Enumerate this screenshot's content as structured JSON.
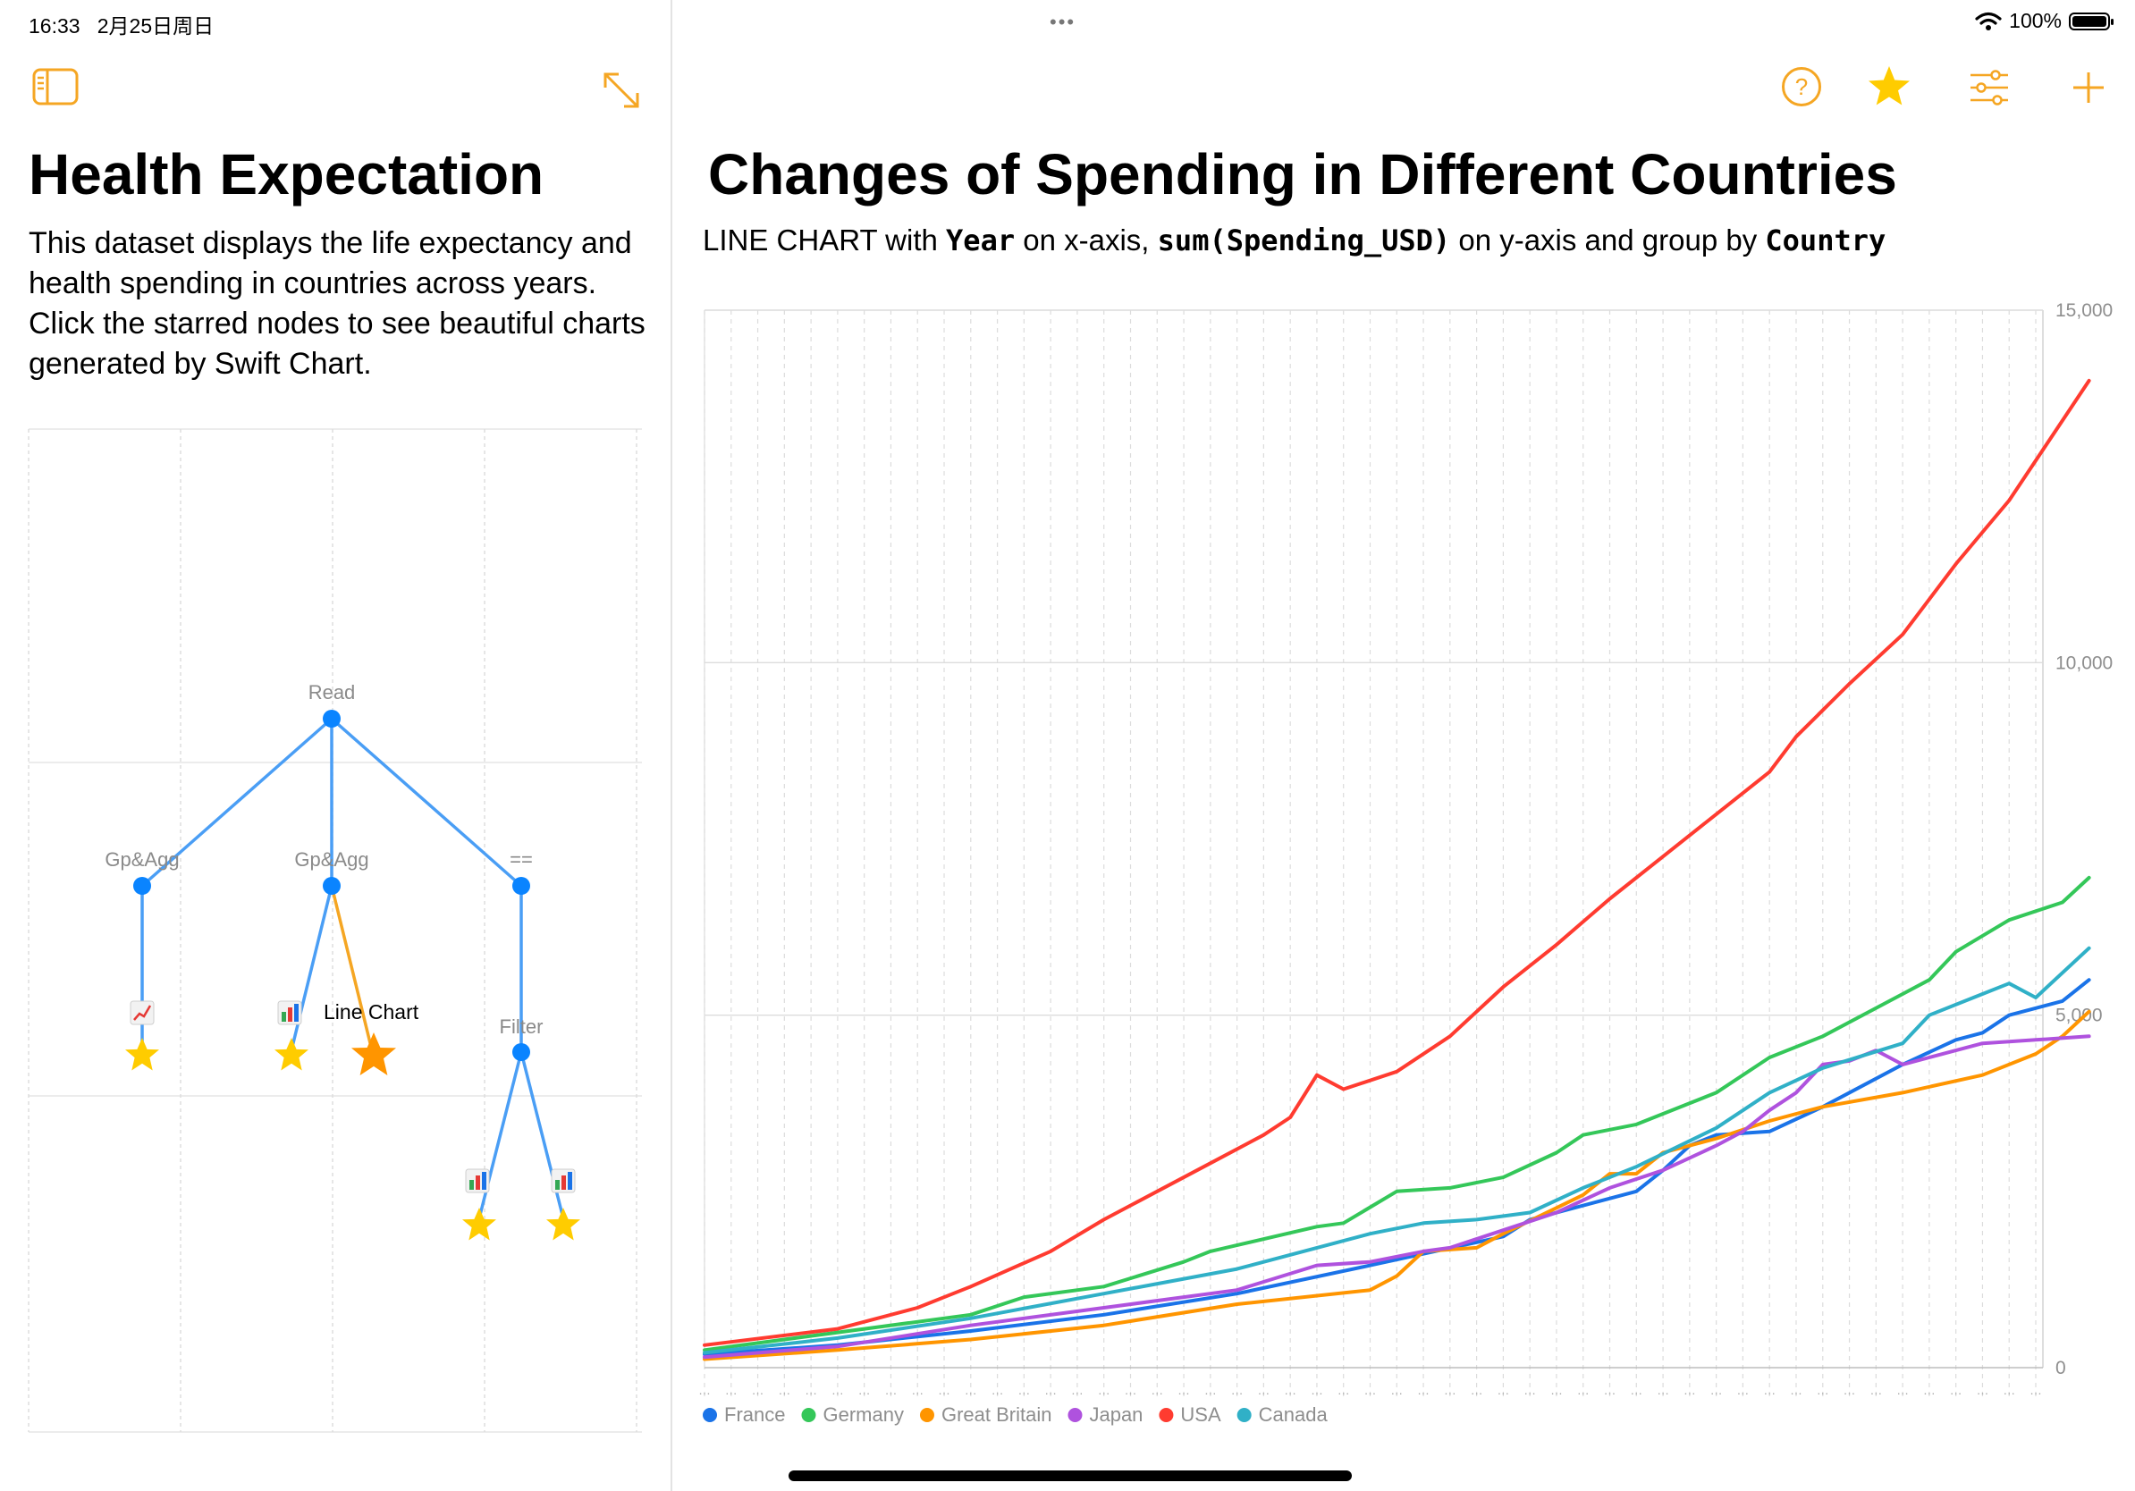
{
  "status_bar": {
    "time": "16:33",
    "date": "2月25日周日",
    "battery": "100%",
    "dots": "•••"
  },
  "toolbar": {
    "left": [
      "sidebar-toggle-icon",
      "expand-icon"
    ],
    "right": [
      "help-icon",
      "star-icon",
      "sliders-icon",
      "plus-icon"
    ],
    "accent_color": "#F5A623",
    "star_color": "#FFCC00"
  },
  "left_panel": {
    "title": "Health Expectation",
    "description": "This dataset displays the life expectancy and health spending in countries across years. Click the starred nodes to see beautiful charts generated by Swift Chart.",
    "graph": {
      "nodes": {
        "read": "Read",
        "gpagg1": "Gp&Agg",
        "gpagg2": "Gp&Agg",
        "eq": "==",
        "filter": "Filter",
        "line_chart": "Line Chart"
      },
      "node_color": "#0A84FF",
      "edge_color": "#4A9EF5",
      "active_edge_color": "#F5A623"
    }
  },
  "right_panel": {
    "title": "Changes of Spending in Different Countries",
    "subtitle": {
      "p1": "LINE CHART with ",
      "x": "Year",
      "p2": " on x-axis, ",
      "y": "sum(Spending_USD)",
      "p3": " on y-axis and group by ",
      "group": "Country"
    }
  },
  "chart_data": {
    "type": "line",
    "title": "Changes of Spending in Different Countries",
    "xlabel": "Year",
    "ylabel": "sum(Spending_USD)",
    "ylim": [
      0,
      15000
    ],
    "yticks": [
      "0",
      "5,000",
      "10,000",
      "15,000"
    ],
    "x_range": [
      1970,
      2020
    ],
    "legend_position": "bottom-left",
    "series": [
      {
        "name": "France",
        "color": "#1A73E8",
        "points": [
          [
            1970,
            190
          ],
          [
            1975,
            320
          ],
          [
            1980,
            520
          ],
          [
            1985,
            750
          ],
          [
            1990,
            1050
          ],
          [
            1995,
            1450
          ],
          [
            2000,
            1860
          ],
          [
            2001,
            2100
          ],
          [
            2005,
            2500
          ],
          [
            2006,
            2800
          ],
          [
            2007,
            3150
          ],
          [
            2008,
            3300
          ],
          [
            2010,
            3350
          ],
          [
            2012,
            3700
          ],
          [
            2015,
            4300
          ],
          [
            2017,
            4650
          ],
          [
            2018,
            4750
          ],
          [
            2019,
            5000
          ],
          [
            2021,
            5200
          ],
          [
            2022,
            5500
          ]
        ]
      },
      {
        "name": "Germany",
        "color": "#34C759",
        "points": [
          [
            1970,
            250
          ],
          [
            1975,
            500
          ],
          [
            1980,
            750
          ],
          [
            1982,
            1000
          ],
          [
            1985,
            1150
          ],
          [
            1988,
            1500
          ],
          [
            1989,
            1650
          ],
          [
            1993,
            2000
          ],
          [
            1994,
            2050
          ],
          [
            1996,
            2500
          ],
          [
            1998,
            2550
          ],
          [
            2000,
            2700
          ],
          [
            2002,
            3050
          ],
          [
            2003,
            3300
          ],
          [
            2005,
            3450
          ],
          [
            2008,
            3900
          ],
          [
            2010,
            4400
          ],
          [
            2012,
            4700
          ],
          [
            2015,
            5300
          ],
          [
            2016,
            5500
          ],
          [
            2017,
            5900
          ],
          [
            2019,
            6350
          ],
          [
            2021,
            6600
          ],
          [
            2022,
            6950
          ]
        ]
      },
      {
        "name": "Great Britain",
        "color": "#FF9500",
        "points": [
          [
            1970,
            120
          ],
          [
            1975,
            250
          ],
          [
            1980,
            400
          ],
          [
            1985,
            600
          ],
          [
            1990,
            900
          ],
          [
            1995,
            1100
          ],
          [
            1996,
            1300
          ],
          [
            1997,
            1650
          ],
          [
            1999,
            1700
          ],
          [
            2000,
            1900
          ],
          [
            2003,
            2450
          ],
          [
            2004,
            2750
          ],
          [
            2005,
            2750
          ],
          [
            2006,
            3050
          ],
          [
            2008,
            3250
          ],
          [
            2010,
            3500
          ],
          [
            2012,
            3700
          ],
          [
            2015,
            3900
          ],
          [
            2018,
            4150
          ],
          [
            2020,
            4450
          ],
          [
            2021,
            4700
          ],
          [
            2022,
            5050
          ]
        ]
      },
      {
        "name": "Japan",
        "color": "#AF52DE",
        "points": [
          [
            1970,
            150
          ],
          [
            1975,
            300
          ],
          [
            1980,
            600
          ],
          [
            1985,
            850
          ],
          [
            1990,
            1100
          ],
          [
            1993,
            1450
          ],
          [
            1995,
            1500
          ],
          [
            1997,
            1650
          ],
          [
            1998,
            1700
          ],
          [
            2000,
            1950
          ],
          [
            2002,
            2200
          ],
          [
            2004,
            2550
          ],
          [
            2006,
            2800
          ],
          [
            2008,
            3150
          ],
          [
            2009,
            3350
          ],
          [
            2010,
            3650
          ],
          [
            2011,
            3900
          ],
          [
            2012,
            4300
          ],
          [
            2013,
            4350
          ],
          [
            2014,
            4500
          ],
          [
            2015,
            4300
          ],
          [
            2016,
            4400
          ],
          [
            2018,
            4600
          ],
          [
            2020,
            4650
          ],
          [
            2022,
            4700
          ]
        ]
      },
      {
        "name": "USA",
        "color": "#FF3B30",
        "points": [
          [
            1970,
            320
          ],
          [
            1975,
            550
          ],
          [
            1978,
            850
          ],
          [
            1980,
            1150
          ],
          [
            1983,
            1650
          ],
          [
            1985,
            2100
          ],
          [
            1987,
            2500
          ],
          [
            1989,
            2900
          ],
          [
            1991,
            3300
          ],
          [
            1992,
            3550
          ],
          [
            1993,
            4150
          ],
          [
            1994,
            3950
          ],
          [
            1996,
            4200
          ],
          [
            1998,
            4700
          ],
          [
            2000,
            5400
          ],
          [
            2002,
            6000
          ],
          [
            2004,
            6650
          ],
          [
            2006,
            7250
          ],
          [
            2008,
            7850
          ],
          [
            2010,
            8450
          ],
          [
            2011,
            8950
          ],
          [
            2013,
            9700
          ],
          [
            2015,
            10400
          ],
          [
            2016,
            10900
          ],
          [
            2017,
            11400
          ],
          [
            2018,
            11850
          ],
          [
            2019,
            12300
          ],
          [
            2022,
            14000
          ]
        ]
      },
      {
        "name": "Canada",
        "color": "#30B0C7",
        "points": [
          [
            1970,
            210
          ],
          [
            1975,
            420
          ],
          [
            1980,
            700
          ],
          [
            1985,
            1050
          ],
          [
            1990,
            1400
          ],
          [
            1995,
            1900
          ],
          [
            1997,
            2050
          ],
          [
            1999,
            2100
          ],
          [
            2001,
            2200
          ],
          [
            2003,
            2550
          ],
          [
            2005,
            2850
          ],
          [
            2008,
            3400
          ],
          [
            2010,
            3900
          ],
          [
            2012,
            4250
          ],
          [
            2015,
            4600
          ],
          [
            2016,
            5000
          ],
          [
            2018,
            5300
          ],
          [
            2019,
            5450
          ],
          [
            2020,
            5250
          ],
          [
            2022,
            5950
          ]
        ]
      }
    ]
  }
}
